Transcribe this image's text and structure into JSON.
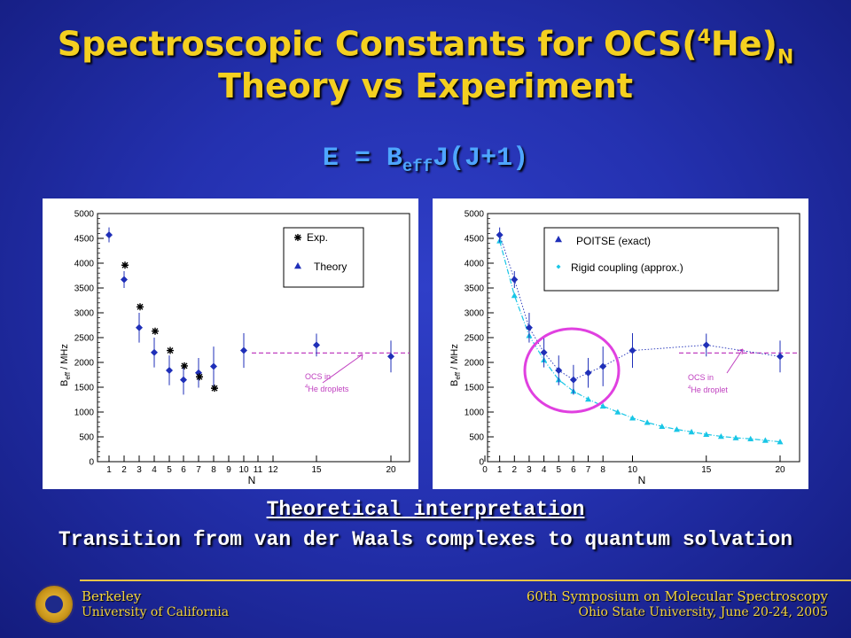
{
  "slide": {
    "title_main": "Spectroscopic Constants for OCS(",
    "title_sup": "4",
    "title_after": "He)",
    "title_sub": "N",
    "title_line2": "Theory vs Experiment",
    "eq_pre": "E = B",
    "eq_sub": "eff",
    "eq_post": "J(J+1)",
    "caption1": "Theoretical interpretation",
    "caption2": "Transition from van der Waals complexes to quantum solvation"
  },
  "footer": {
    "left_line1": "Berkeley",
    "left_line2": "University of California",
    "right_line1": "60th Symposium on Molecular Spectroscopy",
    "right_line2": "Ohio State University, June 20-24, 2005"
  },
  "colors": {
    "title": "#f4d020",
    "equation": "#4ea6ff",
    "theory": "#1f2fb8",
    "approx": "#19c6e6",
    "droplet": "#c040c0",
    "circle": "#e040e0"
  },
  "chart_data": [
    {
      "type": "scatter",
      "xlabel": "N",
      "ylabel_main": "B",
      "ylabel_sub": "eff",
      "ylabel_rest": " / MHz",
      "ylim": [
        0,
        5000
      ],
      "yticks": [
        0,
        500,
        1000,
        1500,
        2000,
        2500,
        3000,
        3500,
        4000,
        4500,
        5000
      ],
      "xtick_labels": [
        "1",
        "2",
        "3",
        "4",
        "5",
        "6",
        "7",
        "8",
        "9",
        "10",
        "11",
        "12",
        "15",
        "20"
      ],
      "legend": [
        "Exp.",
        "Theory"
      ],
      "annotation": [
        "OCS in",
        "He droplets"
      ],
      "annotation_sup": "4",
      "droplet_value": 2190,
      "series": [
        {
          "name": "Theory",
          "x": [
            "1",
            "2",
            "3",
            "4",
            "5",
            "6",
            "7",
            "8",
            "10",
            "15",
            "20"
          ],
          "y": [
            4570,
            3670,
            2700,
            2200,
            1840,
            1650,
            1790,
            1920,
            2240,
            2350,
            2120
          ],
          "err": [
            150,
            170,
            300,
            300,
            300,
            300,
            300,
            400,
            350,
            230,
            320
          ]
        },
        {
          "name": "Exp.",
          "x": [
            "2",
            "3",
            "4",
            "5",
            "6",
            "7",
            "8"
          ],
          "y": [
            3960,
            3120,
            2630,
            2240,
            1930,
            1710,
            1480
          ]
        }
      ]
    },
    {
      "type": "scatter",
      "xlabel": "N",
      "ylabel_main": "B",
      "ylabel_sub": "eff",
      "ylabel_rest": " / MHz",
      "ylim": [
        0,
        5000
      ],
      "yticks": [
        0,
        500,
        1000,
        1500,
        2000,
        2500,
        3000,
        3500,
        4000,
        4500,
        5000
      ],
      "xlim": [
        0,
        20
      ],
      "xtick_labels": [
        "0",
        "1",
        "2",
        "3",
        "4",
        "5",
        "6",
        "7",
        "8",
        "10",
        "15",
        "20"
      ],
      "legend": [
        "POITSE (exact)",
        "Rigid coupling (approx.)"
      ],
      "annotation": [
        "OCS in",
        "He droplet"
      ],
      "annotation_sup": "4",
      "droplet_value": 2190,
      "series": [
        {
          "name": "POITSE (exact)",
          "x": [
            1,
            2,
            3,
            4,
            5,
            6,
            7,
            8,
            10,
            15,
            20
          ],
          "y": [
            4570,
            3670,
            2700,
            2200,
            1840,
            1650,
            1790,
            1920,
            2240,
            2350,
            2120
          ],
          "err": [
            150,
            170,
            300,
            300,
            300,
            300,
            300,
            400,
            350,
            230,
            320
          ]
        },
        {
          "name": "Rigid coupling (approx.)",
          "x": [
            1,
            2,
            3,
            4,
            5,
            6,
            7,
            8,
            9,
            10,
            11,
            12,
            13,
            14,
            15,
            16,
            17,
            18,
            19,
            20
          ],
          "y": [
            4450,
            3350,
            2540,
            2050,
            1650,
            1420,
            1260,
            1120,
            1000,
            880,
            790,
            710,
            650,
            600,
            550,
            510,
            480,
            460,
            430,
            400
          ]
        }
      ]
    }
  ]
}
